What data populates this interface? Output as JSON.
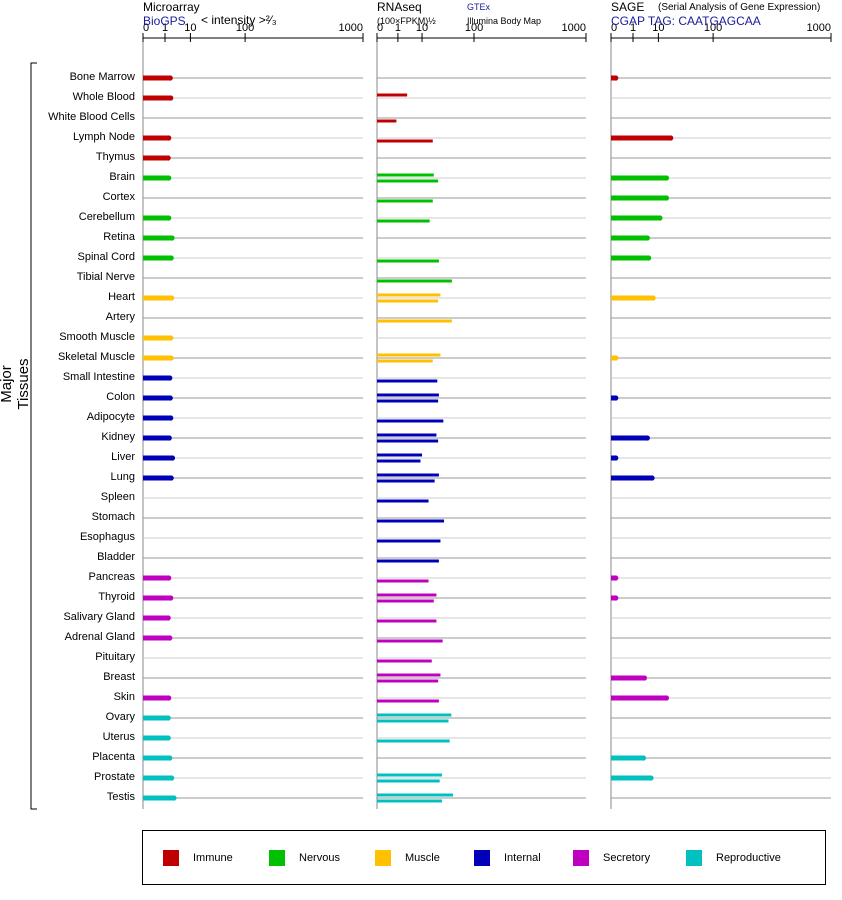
{
  "panels": {
    "microarray": {
      "title": "Microarray",
      "source": "BioGPS",
      "note": "< intensity >²⁄₃"
    },
    "rnaseq": {
      "title": "RNAseq",
      "subtitle": "(100×FPKM)½",
      "source1": "GTEx",
      "source2": "Illumina Body Map"
    },
    "sage": {
      "title": "SAGE",
      "subtitle": "(Serial Analysis of Gene Expression)",
      "source": "CGAP TAG: CAATGAGCAA"
    }
  },
  "axis_ticks": [
    "0",
    "1",
    "10",
    "100",
    "1000"
  ],
  "y_axis_label": "Major Tissues",
  "legend": [
    {
      "label": "Immune",
      "color": "#c00000"
    },
    {
      "label": "Nervous",
      "color": "#00c000"
    },
    {
      "label": "Muscle",
      "color": "#ffc000"
    },
    {
      "label": "Internal",
      "color": "#0000b8"
    },
    {
      "label": "Secretory",
      "color": "#c000c0"
    },
    {
      "label": "Reproductive",
      "color": "#00c0c0"
    }
  ],
  "chart_data": {
    "type": "bar",
    "x_scale": "power (0, 1, 10, 100, 1000)",
    "categories": [
      "Bone Marrow",
      "Whole Blood",
      "White Blood Cells",
      "Lymph Node",
      "Thymus",
      "Brain",
      "Cortex",
      "Cerebellum",
      "Retina",
      "Spinal Cord",
      "Tibial Nerve",
      "Heart",
      "Artery",
      "Smooth Muscle",
      "Skeletal Muscle",
      "Small Intestine",
      "Colon",
      "Adipocyte",
      "Kidney",
      "Liver",
      "Lung",
      "Spleen",
      "Stomach",
      "Esophagus",
      "Bladder",
      "Pancreas",
      "Thyroid",
      "Salivary Gland",
      "Adrenal Gland",
      "Pituitary",
      "Breast",
      "Skin",
      "Ovary",
      "Uterus",
      "Placenta",
      "Prostate",
      "Testis"
    ],
    "groups": [
      "Immune",
      "Immune",
      "Immune",
      "Immune",
      "Immune",
      "Nervous",
      "Nervous",
      "Nervous",
      "Nervous",
      "Nervous",
      "Nervous",
      "Muscle",
      "Muscle",
      "Muscle",
      "Muscle",
      "Internal",
      "Internal",
      "Internal",
      "Internal",
      "Internal",
      "Internal",
      "Internal",
      "Internal",
      "Internal",
      "Internal",
      "Secretory",
      "Secretory",
      "Secretory",
      "Secretory",
      "Secretory",
      "Secretory",
      "Secretory",
      "Reproductive",
      "Reproductive",
      "Reproductive",
      "Reproductive",
      "Reproductive"
    ],
    "microarray": [
      1.9,
      2.0,
      null,
      1.6,
      1.5,
      1.6,
      null,
      1.6,
      2.3,
      2.1,
      null,
      2.2,
      null,
      2.0,
      2.1,
      1.8,
      1.9,
      2.0,
      1.7,
      2.4,
      2.1,
      null,
      null,
      null,
      null,
      1.6,
      2.0,
      1.5,
      1.8,
      null,
      null,
      1.6,
      1.5,
      1.5,
      1.8,
      2.2,
      2.8
    ],
    "rnaseq_gtex": [
      null,
      3.0,
      null,
      null,
      null,
      20,
      null,
      null,
      null,
      null,
      null,
      28,
      null,
      null,
      28,
      null,
      26,
      null,
      23,
      10,
      26,
      null,
      null,
      null,
      null,
      null,
      23,
      null,
      null,
      null,
      28,
      null,
      45,
      null,
      null,
      30,
      48
    ],
    "rnaseq_ibm": [
      null,
      null,
      0.8,
      19,
      null,
      25,
      19,
      16,
      null,
      26,
      46,
      25,
      46,
      null,
      19,
      24,
      25,
      32,
      25,
      9,
      21,
      15,
      33,
      28,
      26,
      15,
      20,
      23,
      31,
      18,
      25,
      26,
      40,
      42,
      null,
      27,
      30
    ],
    "sage": [
      0.01,
      null,
      null,
      20,
      null,
      16,
      16,
      11,
      4.5,
      5,
      null,
      7,
      null,
      null,
      0.01,
      null,
      0.01,
      null,
      4.5,
      0.01,
      6.5,
      null,
      null,
      null,
      null,
      0.01,
      0.01,
      null,
      null,
      null,
      3.5,
      16,
      null,
      null,
      3.2,
      6,
      null
    ]
  }
}
